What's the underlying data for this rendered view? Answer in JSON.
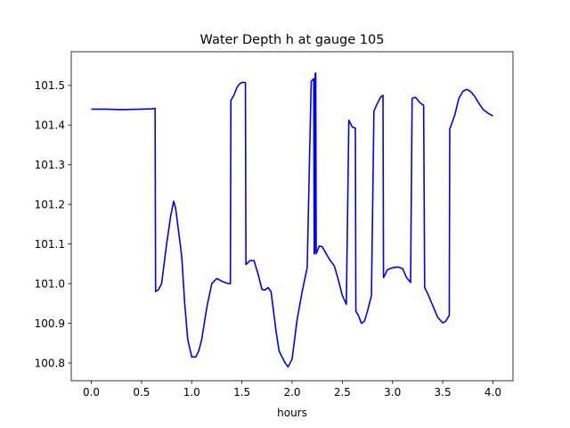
{
  "chart_data": {
    "type": "line",
    "title": "Water Depth h at gauge 105",
    "xlabel": "hours",
    "ylabel": "",
    "xlim": [
      -0.2,
      4.2
    ],
    "ylim": [
      100.755,
      101.585
    ],
    "xticks": [
      0.0,
      0.5,
      1.0,
      1.5,
      2.0,
      2.5,
      3.0,
      3.5,
      4.0
    ],
    "xtick_labels": [
      "0.0",
      "0.5",
      "1.0",
      "1.5",
      "2.0",
      "2.5",
      "3.0",
      "3.5",
      "4.0"
    ],
    "yticks": [
      100.8,
      100.9,
      101.0,
      101.1,
      101.2,
      101.3,
      101.4,
      101.5
    ],
    "ytick_labels": [
      "100.8",
      "100.9",
      "101.0",
      "101.1",
      "101.2",
      "101.3",
      "101.4",
      "101.5"
    ],
    "grid": false,
    "series": [
      {
        "color": "#0000ff",
        "x": [
          0.0,
          0.15,
          0.3,
          0.5,
          0.6,
          0.635,
          0.64,
          0.67,
          0.7,
          0.75,
          0.79,
          0.82,
          0.84,
          0.87,
          0.9,
          0.93,
          0.96,
          1.0,
          1.04,
          1.07,
          1.1,
          1.15,
          1.2,
          1.25,
          1.3,
          1.35,
          1.385,
          1.39,
          1.42,
          1.45,
          1.48,
          1.51,
          1.535,
          1.54,
          1.58,
          1.62,
          1.66,
          1.7,
          1.73,
          1.76,
          1.79,
          1.81,
          1.84,
          1.87,
          1.9,
          1.93,
          1.96,
          2.0,
          2.02,
          2.05,
          2.1,
          2.15,
          2.19,
          2.215,
          2.22,
          2.225,
          2.23,
          2.235,
          2.24,
          2.27,
          2.3,
          2.34,
          2.38,
          2.42,
          2.46,
          2.5,
          2.54,
          2.565,
          2.57,
          2.6,
          2.63,
          2.635,
          2.66,
          2.69,
          2.72,
          2.75,
          2.79,
          2.815,
          2.82,
          2.85,
          2.88,
          2.905,
          2.91,
          2.95,
          3.0,
          3.05,
          3.1,
          3.14,
          3.18,
          3.195,
          3.2,
          3.23,
          3.26,
          3.29,
          3.31,
          3.32,
          3.35,
          3.4,
          3.45,
          3.5,
          3.53,
          3.565,
          3.57,
          3.62,
          3.66,
          3.7,
          3.74,
          3.78,
          3.82,
          3.86,
          3.9,
          3.95,
          4.0
        ],
        "y": [
          101.44,
          101.44,
          101.439,
          101.44,
          101.441,
          101.442,
          100.98,
          100.985,
          101.0,
          101.1,
          101.17,
          101.208,
          101.19,
          101.13,
          101.07,
          100.95,
          100.86,
          100.815,
          100.815,
          100.83,
          100.86,
          100.94,
          101.0,
          101.013,
          101.006,
          101.001,
          101.0,
          101.462,
          101.475,
          101.495,
          101.505,
          101.508,
          101.507,
          101.048,
          101.058,
          101.058,
          101.025,
          100.985,
          100.984,
          100.99,
          100.98,
          100.94,
          100.88,
          100.83,
          100.815,
          100.8,
          100.79,
          100.81,
          100.85,
          100.91,
          100.98,
          101.04,
          101.51,
          101.517,
          101.075,
          101.08,
          101.53,
          101.531,
          101.075,
          101.095,
          101.093,
          101.075,
          101.058,
          101.045,
          101.01,
          100.97,
          100.948,
          101.412,
          101.41,
          101.395,
          101.392,
          100.93,
          100.92,
          100.9,
          100.905,
          100.93,
          100.97,
          101.435,
          101.438,
          101.455,
          101.47,
          101.475,
          101.015,
          101.035,
          101.04,
          101.042,
          101.038,
          101.015,
          101.003,
          101.465,
          101.468,
          101.47,
          101.46,
          101.453,
          101.45,
          100.99,
          100.975,
          100.945,
          100.915,
          100.901,
          100.905,
          100.92,
          101.39,
          101.425,
          101.467,
          101.485,
          101.49,
          101.484,
          101.472,
          101.455,
          101.44,
          101.43,
          101.423
        ]
      }
    ]
  }
}
